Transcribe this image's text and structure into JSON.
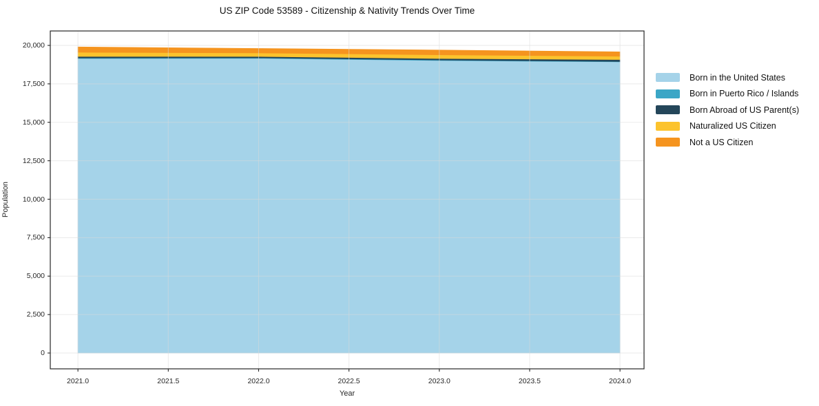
{
  "accent_colors": {
    "spine": "#262626",
    "grid": "#d9d9d9",
    "text": "#111111"
  },
  "chart_data": {
    "type": "area",
    "stacked": true,
    "title": "US ZIP Code 53589 - Citizenship & Nativity Trends Over Time",
    "xlabel": "Year",
    "ylabel": "Population",
    "x": [
      2021,
      2022,
      2023,
      2024
    ],
    "series": [
      {
        "name": "Born in the United States",
        "color": "#a5d3e9",
        "values": [
          19150,
          19160,
          19020,
          18930
        ]
      },
      {
        "name": "Born in Puerto Rico / Islands",
        "color": "#3ba6c6",
        "values": [
          30,
          30,
          30,
          25
        ]
      },
      {
        "name": "Born Abroad of US Parent(s)",
        "color": "#24465a",
        "values": [
          105,
          90,
          100,
          125
        ]
      },
      {
        "name": "Naturalized US Citizen",
        "color": "#fcc32d",
        "values": [
          270,
          230,
          240,
          215
        ]
      },
      {
        "name": "Not a US Citizen",
        "color": "#f5941f",
        "values": [
          345,
          290,
          310,
          285
        ]
      }
    ],
    "stacked_totals": [
      19900,
      19800,
      19700,
      19580
    ],
    "xlim": [
      2020.847,
      2024.133
    ],
    "ylim": [
      -1029,
      20939
    ],
    "xticks": {
      "values": [
        2021.0,
        2021.5,
        2022.0,
        2022.5,
        2023.0,
        2023.5,
        2024.0
      ],
      "labels": [
        "2021.0",
        "2021.5",
        "2022.0",
        "2022.5",
        "2023.0",
        "2023.5",
        "2024.0"
      ]
    },
    "yticks": {
      "values": [
        0,
        2500,
        5000,
        7500,
        10000,
        12500,
        15000,
        17500,
        20000
      ],
      "labels": [
        "0",
        "2,500",
        "5,000",
        "7,500",
        "10,000",
        "12,500",
        "15,000",
        "17,500",
        "20,000"
      ]
    },
    "grid": true,
    "legend_position": "right-outside"
  }
}
